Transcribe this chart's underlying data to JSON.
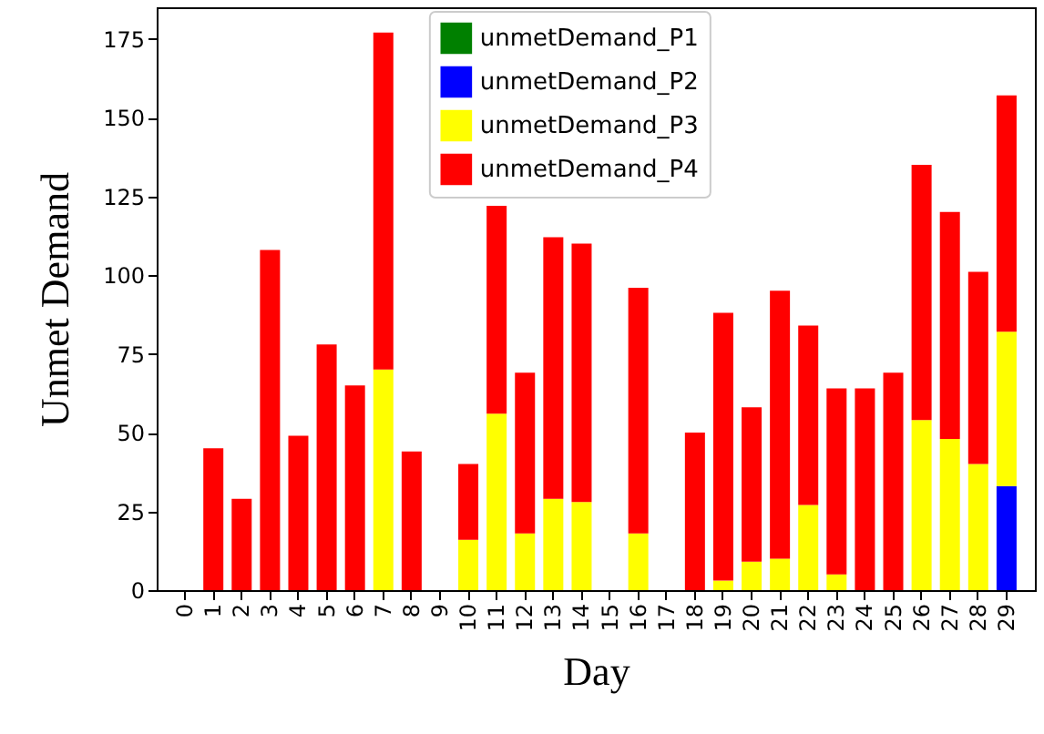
{
  "chart_data": {
    "type": "bar",
    "stacked": true,
    "xlabel": "Day",
    "ylabel": "Unmet Demand",
    "categories": [
      "0",
      "1",
      "2",
      "3",
      "4",
      "5",
      "6",
      "7",
      "8",
      "9",
      "10",
      "11",
      "12",
      "13",
      "14",
      "15",
      "16",
      "17",
      "18",
      "19",
      "20",
      "21",
      "22",
      "23",
      "24",
      "25",
      "26",
      "27",
      "28",
      "29"
    ],
    "series": [
      {
        "name": "unmetDemand_P1",
        "color": "#008000",
        "values": [
          0,
          0,
          0,
          0,
          0,
          0,
          0,
          0,
          0,
          0,
          0,
          0,
          0,
          0,
          0,
          0,
          0,
          0,
          0,
          0,
          0,
          0,
          0,
          0,
          0,
          0,
          0,
          0,
          0,
          0
        ]
      },
      {
        "name": "unmetDemand_P2",
        "color": "#0000ff",
        "values": [
          0,
          0,
          0,
          0,
          0,
          0,
          0,
          0,
          0,
          0,
          0,
          0,
          0,
          0,
          0,
          0,
          0,
          0,
          0,
          0,
          0,
          0,
          0,
          0,
          0,
          0,
          0,
          0,
          0,
          33
        ]
      },
      {
        "name": "unmetDemand_P3",
        "color": "#ffff00",
        "values": [
          0,
          0,
          0,
          0,
          0,
          0,
          0,
          70,
          0,
          0,
          16,
          56,
          18,
          29,
          28,
          0,
          18,
          0,
          0,
          3,
          9,
          10,
          27,
          5,
          0,
          0,
          54,
          48,
          40,
          49
        ]
      },
      {
        "name": "unmetDemand_P4",
        "color": "#ff0000",
        "values": [
          0,
          45,
          29,
          108,
          49,
          78,
          65,
          107,
          44,
          0,
          24,
          66,
          51,
          83,
          82,
          0,
          78,
          0,
          50,
          85,
          49,
          85,
          57,
          59,
          64,
          69,
          81,
          72,
          61,
          75
        ]
      }
    ],
    "ylim": [
      0,
      185
    ],
    "yticks": [
      0,
      25,
      50,
      75,
      100,
      125,
      150,
      175
    ],
    "grid": false,
    "legend": "top"
  }
}
